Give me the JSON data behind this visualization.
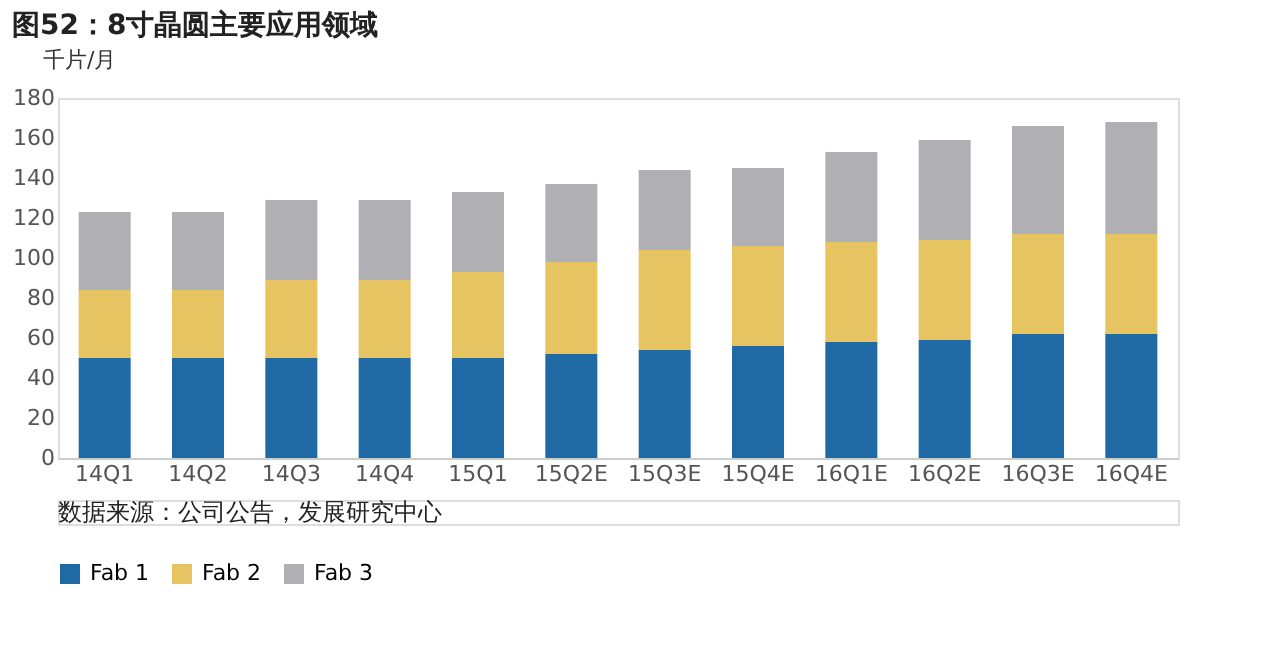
{
  "chart_data": {
    "type": "bar",
    "title": "图52：8寸晶圆主要应用领域",
    "ylabel": "千片/月",
    "categories": [
      "14Q1",
      "14Q2",
      "14Q3",
      "14Q4",
      "15Q1",
      "15Q2E",
      "15Q3E",
      "15Q4E",
      "16Q1E",
      "16Q2E",
      "16Q3E",
      "16Q4E"
    ],
    "series": [
      {
        "name": "Fab 1",
        "color": "#1f6aa5",
        "values": [
          50,
          50,
          50,
          50,
          50,
          52,
          54,
          56,
          58,
          59,
          62,
          62
        ]
      },
      {
        "name": "Fab 2",
        "color": "#e6c462",
        "values": [
          34,
          34,
          39,
          39,
          43,
          46,
          50,
          50,
          50,
          50,
          50,
          50
        ]
      },
      {
        "name": "Fab 3",
        "color": "#b0b0b4",
        "values": [
          39,
          39,
          40,
          40,
          40,
          39,
          40,
          39,
          45,
          50,
          54,
          56
        ]
      }
    ],
    "stacked": true,
    "ylim": [
      0,
      180
    ],
    "yticks": [
      0,
      20,
      40,
      60,
      80,
      100,
      120,
      140,
      160,
      180
    ],
    "grid": false,
    "legend": "bottom",
    "annotations": [
      "数据来源：公司公告，发展研究中心"
    ]
  }
}
